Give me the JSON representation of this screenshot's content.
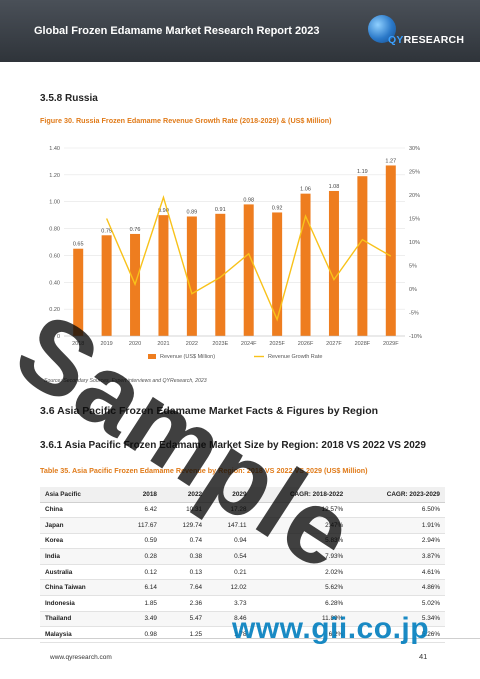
{
  "header": {
    "title": "Global Frozen Edamame Market Research Report 2023"
  },
  "logo": {
    "text_prefix": "QY",
    "text_rest": "RESEARCH"
  },
  "section": {
    "title": "3.5.8   Russia"
  },
  "figure": {
    "caption": "Figure 30.   Russia Frozen Edamame Revenue Growth Rate (2018-2029) & (US$ Million)"
  },
  "chart_data": {
    "type": "bar",
    "categories": [
      "2018",
      "2019",
      "2020",
      "2021",
      "2022",
      "2023E",
      "2024F",
      "2025F",
      "2026F",
      "2027F",
      "2028F",
      "2029F"
    ],
    "series": [
      {
        "name": "Revenue (US$ Million)",
        "values": [
          0.65,
          0.75,
          0.76,
          0.9,
          0.89,
          0.91,
          0.98,
          0.92,
          1.06,
          1.08,
          1.19,
          1.27
        ],
        "axis": "left",
        "color": "#ee7d1f"
      },
      {
        "name": "Revenue Growth Rate",
        "values": [
          null,
          15.0,
          1.0,
          19.5,
          -1.0,
          2.5,
          7.5,
          -6.5,
          15.5,
          2.0,
          10.5,
          7.0
        ],
        "axis": "right",
        "color": "#f8c21a"
      }
    ],
    "data_labels": [
      "0.65",
      "0.75",
      "0.76",
      "0.90",
      "0.89",
      "0.91",
      "0.98",
      "0.92",
      "1.06",
      "1.08",
      "1.19",
      "1.27"
    ],
    "left_ticks": [
      "0",
      "0.20",
      "0.40",
      "0.60",
      "0.80",
      "1.00",
      "1.20",
      "1.40"
    ],
    "right_ticks": [
      "-10%",
      "-5%",
      "0%",
      "5%",
      "10%",
      "15%",
      "20%",
      "25%",
      "30%"
    ],
    "ylim": [
      0,
      1.4
    ],
    "y2lim": [
      -10,
      30
    ],
    "legend_position": "bottom",
    "legend": [
      "Revenue (US$ Million)",
      "Revenue Growth Rate"
    ],
    "grid": true
  },
  "source": "Source: Secondary Sources, Expert interviews and QYResearch, 2023",
  "h2": "3.6   Asia Pacific Frozen Edamame Market Facts & Figures by Region",
  "h3": "3.6.1   Asia Pacific Frozen Edamame Market Size by Region: 2018 VS 2022 VS 2029",
  "table": {
    "caption": "Table 35.   Asia Pacific Frozen Edamame Revenue by Region: 2018 VS 2022 VS 2029 (US$ Million)",
    "headers": [
      "Asia Pacific",
      "2018",
      "2022",
      "2029",
      "CAGR: 2018-2022",
      "CAGR: 2023-2029"
    ],
    "rows": [
      [
        "China",
        "6.42",
        "10.31",
        "17.28",
        "12.57%",
        "6.50%"
      ],
      [
        "Japan",
        "117.67",
        "129.74",
        "147.11",
        "2.47%",
        "1.91%"
      ],
      [
        "Korea",
        "0.59",
        "0.74",
        "0.94",
        "5.83%",
        "2.94%"
      ],
      [
        "India",
        "0.28",
        "0.38",
        "0.54",
        "7.93%",
        "3.87%"
      ],
      [
        "Australia",
        "0.12",
        "0.13",
        "0.21",
        "2.02%",
        "4.61%"
      ],
      [
        "China Taiwan",
        "6.14",
        "7.64",
        "12.02",
        "5.62%",
        "4.86%"
      ],
      [
        "Indonesia",
        "1.85",
        "2.36",
        "3.73",
        "6.28%",
        "5.02%"
      ],
      [
        "Thailand",
        "3.49",
        "5.47",
        "8.46",
        "11.89%",
        "5.34%"
      ],
      [
        "Malaysia",
        "0.98",
        "1.25",
        "1.78",
        "6.2%",
        "5.26%"
      ]
    ]
  },
  "footer": {
    "url": "www.qyresearch.com",
    "page": "41"
  },
  "watermark": {
    "sample": "Sample",
    "gii": "www.gii.co.jp"
  },
  "colors": {
    "accent": "#e07b1a",
    "bar": "#ee7d1f",
    "line": "#f8c21a",
    "header_bg": "#3a3f45"
  }
}
